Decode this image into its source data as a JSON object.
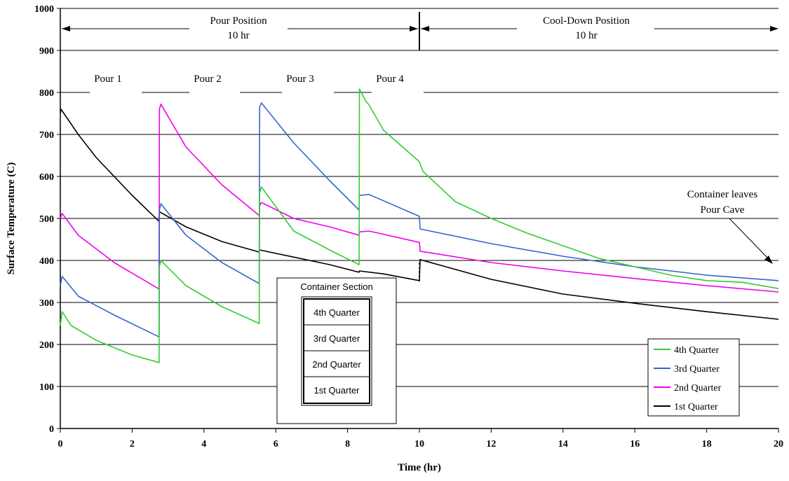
{
  "chart_data": {
    "type": "line",
    "xlabel": "Time (hr)",
    "ylabel": "Surface Temperature (C)",
    "xlim": [
      0,
      20
    ],
    "ylim": [
      0,
      1000
    ],
    "x_ticks": [
      "0",
      "2",
      "4",
      "6",
      "8",
      "10",
      "12",
      "14",
      "16",
      "18",
      "20"
    ],
    "y_ticks": [
      "0",
      "100",
      "200",
      "300",
      "400",
      "500",
      "600",
      "700",
      "800",
      "900",
      "1000"
    ],
    "grid": "horizontal",
    "legend_position": "bottom-right",
    "series": [
      {
        "name": "4th Quarter",
        "color": "#33cc33",
        "x": [
          0,
          0.05,
          0.3,
          1.0,
          2.0,
          2.75,
          2.76,
          2.8,
          3.5,
          4.5,
          5.54,
          5.55,
          5.6,
          6.5,
          7.5,
          8.32,
          8.33,
          8.5,
          8.6,
          9.0,
          10.0,
          10.1,
          11.0,
          12.0,
          13.0,
          14.0,
          15.0,
          16.0,
          17.0,
          18.0,
          19.0,
          20.0
        ],
        "y": [
          245,
          278,
          245,
          210,
          175,
          157,
          385,
          400,
          340,
          290,
          250,
          560,
          575,
          470,
          425,
          390,
          808,
          780,
          770,
          710,
          635,
          612,
          540,
          500,
          465,
          435,
          405,
          385,
          365,
          352,
          348,
          333
        ]
      },
      {
        "name": "3rd Quarter",
        "color": "#3366cc",
        "x": [
          0,
          0.05,
          0.5,
          1.5,
          2.75,
          2.76,
          2.8,
          3.5,
          4.5,
          5.54,
          5.55,
          5.6,
          6.5,
          7.5,
          8.32,
          8.33,
          8.6,
          10.0,
          10.02,
          12.0,
          14.0,
          16.0,
          18.0,
          20.0
        ],
        "y": [
          340,
          362,
          315,
          270,
          218,
          520,
          535,
          460,
          395,
          345,
          765,
          775,
          680,
          590,
          520,
          555,
          557,
          505,
          475,
          440,
          410,
          385,
          365,
          352
        ]
      },
      {
        "name": "2nd Quarter",
        "color": "#ee00ee",
        "x": [
          0,
          0.05,
          0.5,
          1.5,
          2.75,
          2.76,
          2.8,
          3.5,
          4.5,
          5.54,
          5.55,
          5.6,
          6.5,
          7.5,
          8.32,
          8.33,
          8.6,
          10.0,
          10.02,
          12.0,
          14.0,
          16.0,
          18.0,
          20.0
        ],
        "y": [
          500,
          512,
          460,
          395,
          332,
          760,
          772,
          670,
          580,
          507,
          530,
          538,
          500,
          480,
          460,
          468,
          470,
          443,
          422,
          395,
          375,
          357,
          340,
          325
        ]
      },
      {
        "name": "1st Quarter",
        "color": "#000000",
        "x": [
          0,
          0.02,
          0.5,
          1.0,
          2.0,
          2.75,
          2.76,
          3.5,
          4.5,
          5.54,
          5.55,
          6.5,
          7.5,
          8.32,
          8.33,
          9.0,
          10.0,
          10.02,
          12.0,
          14.0,
          16.0,
          18.0,
          20.0
        ],
        "y": [
          750,
          760,
          700,
          645,
          555,
          493,
          516,
          480,
          445,
          420,
          425,
          408,
          390,
          372,
          375,
          368,
          352,
          402,
          355,
          320,
          298,
          278,
          260
        ]
      }
    ],
    "annotations": {
      "pour_position": "Pour Position",
      "pour_position_time": "10 hr",
      "cooldown_position": "Cool-Down Position",
      "cooldown_position_time": "10 hr",
      "pour1": "Pour 1",
      "pour2": "Pour 2",
      "pour3": "Pour 3",
      "pour4": "Pour 4",
      "container_leaves_line1": "Container leaves",
      "container_leaves_line2": "Pour Cave"
    },
    "inset": {
      "title": "Container Section",
      "rows": [
        "4th Quarter",
        "3rd Quarter",
        "2nd Quarter",
        "1st Quarter"
      ]
    }
  }
}
